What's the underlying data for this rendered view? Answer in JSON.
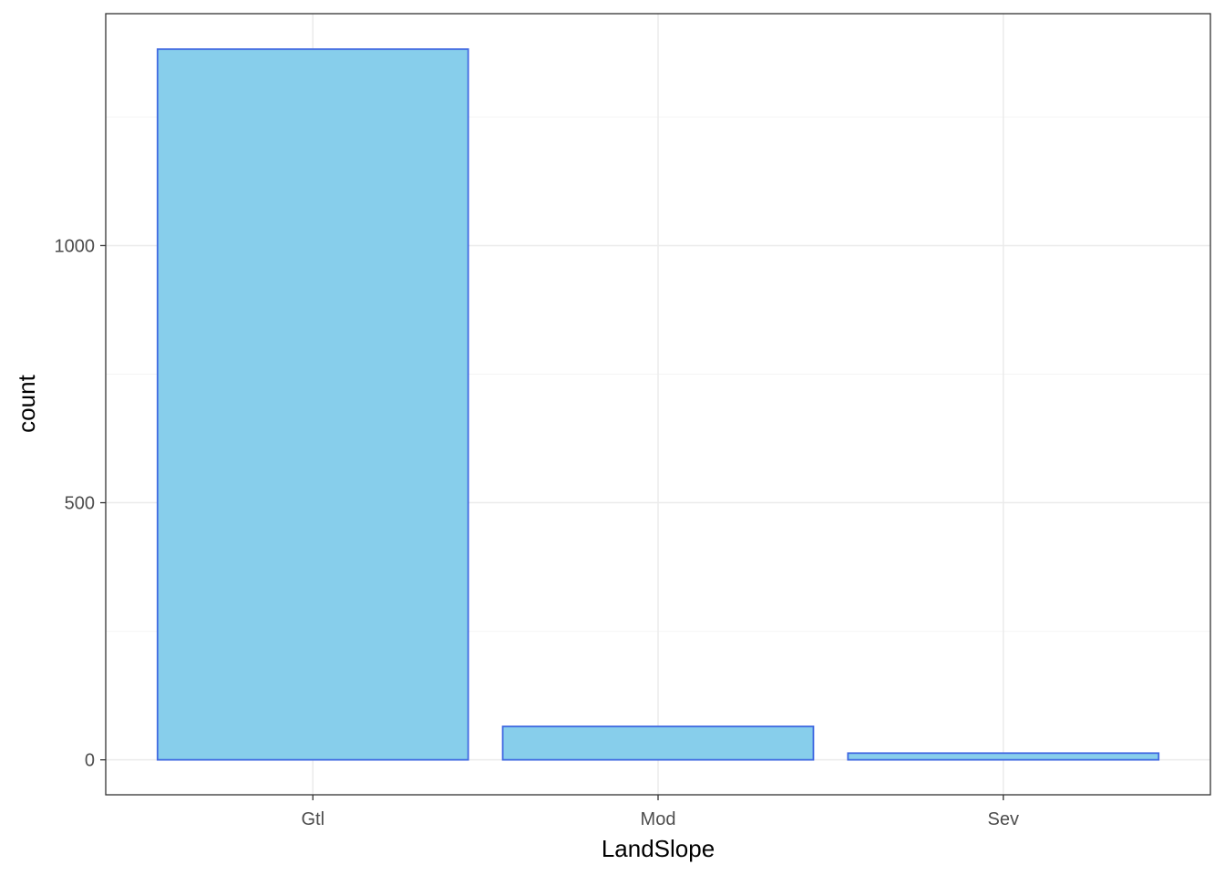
{
  "chart_data": {
    "type": "bar",
    "title": "",
    "xlabel": "LandSlope",
    "ylabel": "count",
    "categories": [
      "Gtl",
      "Mod",
      "Sev"
    ],
    "values": [
      1382,
      65,
      13
    ],
    "ylim": [
      -68,
      1451
    ],
    "y_ticks": [
      0,
      500,
      1000
    ],
    "y_tick_labels": [
      "0",
      "500",
      "1000"
    ],
    "grid": true,
    "legend": "none",
    "colors": {
      "bar_fill": "#87CEEB",
      "bar_stroke": "#4169E1",
      "grid_major": "#EBEBEB",
      "grid_minor": "#F4F4F4",
      "panel_border": "#333333"
    }
  }
}
